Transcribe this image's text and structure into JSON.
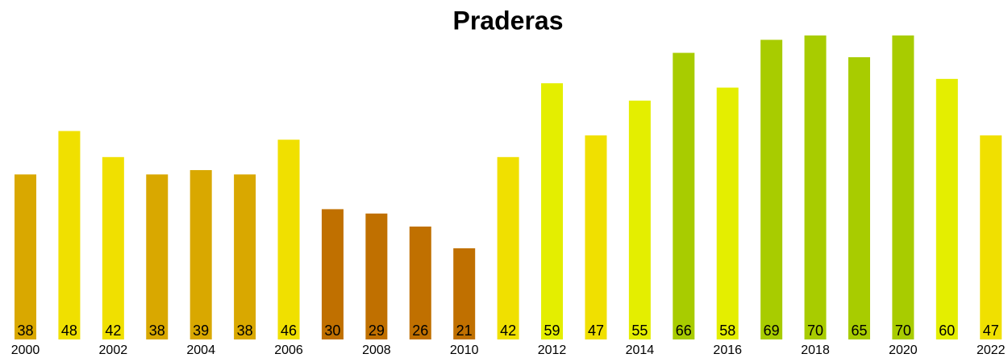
{
  "chart_data": {
    "type": "bar",
    "title": "Praderas",
    "categories": [
      "2000",
      null,
      "2002",
      null,
      "2004",
      null,
      "2006",
      null,
      "2008",
      null,
      "2010",
      null,
      "2012",
      null,
      "2014",
      null,
      "2016",
      null,
      "2018",
      null,
      "2020",
      null,
      "2022"
    ],
    "values": [
      38,
      48,
      42,
      38,
      39,
      38,
      46,
      30,
      29,
      26,
      21,
      42,
      59,
      47,
      55,
      66,
      58,
      69,
      70,
      65,
      70,
      60,
      47
    ],
    "colors": [
      "#d9a800",
      "#f0e000",
      "#f0e000",
      "#d9a800",
      "#d9a800",
      "#d9a800",
      "#f0e000",
      "#c07000",
      "#c07000",
      "#c07000",
      "#c07000",
      "#f0e000",
      "#e4ee00",
      "#f0e000",
      "#e4ee00",
      "#a8cc00",
      "#e4ee00",
      "#a8cc00",
      "#a8cc00",
      "#a8cc00",
      "#a8cc00",
      "#e4ee00",
      "#f0e000"
    ]
  }
}
